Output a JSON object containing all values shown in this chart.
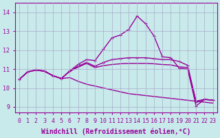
{
  "bg_color": "#c8eaea",
  "line_color": "#990099",
  "grid_color": "#aaaacc",
  "xlabel": "Windchill (Refroidissement éolien,°C)",
  "ylabel_ticks": [
    9,
    10,
    11,
    12,
    13,
    14
  ],
  "xlim": [
    -0.5,
    23.5
  ],
  "ylim": [
    8.7,
    14.5
  ],
  "series1_x": [
    0,
    1,
    2,
    3,
    4,
    5,
    6,
    7,
    8,
    9,
    10,
    11,
    12,
    13,
    14,
    15,
    16,
    17,
    18,
    19,
    20,
    21,
    22,
    23
  ],
  "series1_y": [
    10.45,
    10.85,
    10.95,
    10.9,
    10.65,
    10.5,
    10.9,
    11.25,
    11.5,
    11.45,
    12.05,
    12.65,
    12.8,
    13.1,
    13.8,
    13.4,
    12.75,
    11.65,
    11.6,
    11.05,
    11.0,
    9.05,
    9.4,
    9.35
  ],
  "series2_x": [
    0,
    1,
    2,
    3,
    4,
    5,
    6,
    7,
    8,
    9,
    10,
    11,
    12,
    13,
    14,
    15,
    16,
    17,
    18,
    19,
    20,
    21,
    22,
    23
  ],
  "series2_y": [
    10.45,
    10.85,
    10.95,
    10.9,
    10.65,
    10.5,
    10.9,
    11.15,
    11.35,
    11.15,
    11.35,
    11.5,
    11.55,
    11.6,
    11.6,
    11.6,
    11.55,
    11.5,
    11.5,
    11.4,
    11.2,
    9.25,
    9.4,
    9.35
  ],
  "series3_x": [
    0,
    1,
    2,
    3,
    4,
    5,
    6,
    7,
    8,
    9,
    10,
    11,
    12,
    13,
    14,
    15,
    16,
    17,
    18,
    19,
    20,
    21,
    22,
    23
  ],
  "series3_y": [
    10.45,
    10.85,
    10.95,
    10.88,
    10.65,
    10.5,
    10.88,
    11.1,
    11.3,
    11.08,
    11.18,
    11.24,
    11.28,
    11.3,
    11.3,
    11.3,
    11.28,
    11.24,
    11.22,
    11.12,
    11.08,
    9.3,
    9.4,
    9.35
  ],
  "series4_x": [
    0,
    1,
    2,
    3,
    4,
    5,
    6,
    7,
    8,
    9,
    10,
    11,
    12,
    13,
    14,
    15,
    16,
    17,
    18,
    19,
    20,
    21,
    22,
    23
  ],
  "series4_y": [
    10.45,
    10.85,
    10.95,
    10.88,
    10.65,
    10.5,
    10.55,
    10.35,
    10.2,
    10.1,
    10.0,
    9.9,
    9.8,
    9.7,
    9.65,
    9.6,
    9.55,
    9.5,
    9.45,
    9.4,
    9.35,
    9.3,
    9.25,
    9.2
  ],
  "xtick_labels": [
    "0",
    "1",
    "2",
    "3",
    "4",
    "5",
    "6",
    "7",
    "8",
    "9",
    "10",
    "11",
    "12",
    "13",
    "14",
    "15",
    "16",
    "17",
    "18",
    "19",
    "20",
    "21",
    "22",
    "23"
  ],
  "title_fontsize": 7,
  "tick_fontsize": 6,
  "marker": "+",
  "linewidth": 1.0
}
